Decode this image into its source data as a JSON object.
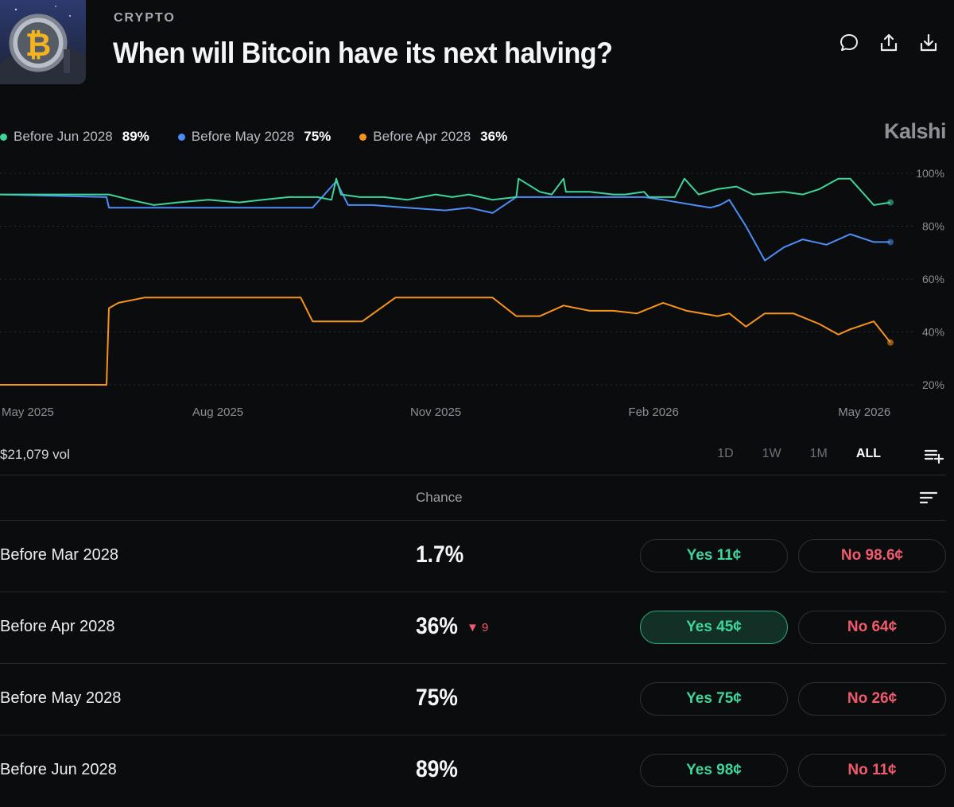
{
  "header": {
    "category": "CRYPTO",
    "title": "When will Bitcoin have its next halving?",
    "actions": [
      "comment-icon",
      "share-icon",
      "download-icon"
    ]
  },
  "legend": [
    {
      "label": "Before Jun 2028",
      "value": "89%",
      "color": "#3fd49a"
    },
    {
      "label": "Before May 2028",
      "value": "75%",
      "color": "#4b8ef7"
    },
    {
      "label": "Before Apr 2028",
      "value": "36%",
      "color": "#f7931a"
    }
  ],
  "brand": "Kalshi",
  "chart_data": {
    "type": "line",
    "x_ticks": [
      "May 2025",
      "Aug 2025",
      "Nov 2025",
      "Feb 2026",
      "May 2026"
    ],
    "y_ticks": [
      "100%",
      "80%",
      "60%",
      "40%",
      "20%"
    ],
    "ylim": [
      20,
      100
    ],
    "grid": true,
    "series": [
      {
        "name": "Before Jun 2028",
        "color": "#3fd49a",
        "x": [
          "2025-05-01",
          "2025-06-15",
          "2025-06-16",
          "2025-06-25",
          "2025-07-05",
          "2025-07-15",
          "2025-07-28",
          "2025-08-10",
          "2025-08-20",
          "2025-08-31",
          "2025-09-03",
          "2025-09-12",
          "2025-09-18",
          "2025-09-20",
          "2025-09-22",
          "2025-09-30",
          "2025-10-10",
          "2025-10-20",
          "2025-11-01",
          "2025-11-08",
          "2025-11-15",
          "2025-11-25",
          "2025-12-05",
          "2025-12-06",
          "2025-12-15",
          "2025-12-20",
          "2025-12-25",
          "2025-12-26",
          "2026-01-05",
          "2026-01-15",
          "2026-01-20",
          "2026-01-28",
          "2026-01-30",
          "2026-02-10",
          "2026-02-14",
          "2026-02-20",
          "2026-02-28",
          "2026-03-08",
          "2026-03-15",
          "2026-03-28",
          "2026-04-05",
          "2026-04-12",
          "2026-04-20",
          "2026-04-25",
          "2026-05-05",
          "2026-05-12"
        ],
        "values": [
          92,
          92,
          92,
          90,
          88,
          89,
          90,
          89,
          90,
          91,
          91,
          91,
          90,
          98,
          92,
          91,
          91,
          90,
          92,
          91,
          92,
          90,
          91,
          98,
          93,
          92,
          98,
          93,
          93,
          92,
          92,
          93,
          91,
          91,
          98,
          92,
          94,
          95,
          92,
          93,
          92,
          94,
          98,
          98,
          88,
          89
        ]
      },
      {
        "name": "Before May 2028",
        "color": "#4b8ef7",
        "x": [
          "2025-05-01",
          "2025-06-15",
          "2025-06-16",
          "2025-07-05",
          "2025-07-28",
          "2025-08-20",
          "2025-09-03",
          "2025-09-10",
          "2025-09-20",
          "2025-09-25",
          "2025-10-05",
          "2025-10-20",
          "2025-11-05",
          "2025-11-15",
          "2025-11-25",
          "2025-12-05",
          "2025-12-15",
          "2025-12-25",
          "2026-01-05",
          "2026-01-15",
          "2026-01-28",
          "2026-02-05",
          "2026-02-18",
          "2026-02-25",
          "2026-03-01",
          "2026-03-05",
          "2026-03-12",
          "2026-03-20",
          "2026-03-28",
          "2026-04-05",
          "2026-04-15",
          "2026-04-25",
          "2026-05-05",
          "2026-05-12"
        ],
        "values": [
          92,
          91,
          87,
          87,
          87,
          87,
          87,
          87,
          97,
          88,
          88,
          87,
          86,
          87,
          85,
          91,
          91,
          91,
          91,
          91,
          91,
          90,
          88,
          87,
          88,
          90,
          80,
          67,
          72,
          75,
          73,
          77,
          74,
          74
        ]
      },
      {
        "name": "Before Apr 2028",
        "color": "#f7931a",
        "x": [
          "2025-05-01",
          "2025-06-15",
          "2025-06-16",
          "2025-06-20",
          "2025-07-01",
          "2025-07-15",
          "2025-07-28",
          "2025-08-10",
          "2025-08-25",
          "2025-09-05",
          "2025-09-10",
          "2025-09-20",
          "2025-10-01",
          "2025-10-15",
          "2025-11-01",
          "2025-11-12",
          "2025-11-25",
          "2025-12-05",
          "2025-12-15",
          "2025-12-25",
          "2026-01-05",
          "2026-01-15",
          "2026-01-25",
          "2026-02-05",
          "2026-02-15",
          "2026-02-28",
          "2026-03-05",
          "2026-03-12",
          "2026-03-20",
          "2026-04-01",
          "2026-04-12",
          "2026-04-20",
          "2026-04-25",
          "2026-05-05",
          "2026-05-12"
        ],
        "values": [
          20,
          20,
          49,
          51,
          53,
          53,
          53,
          53,
          53,
          53,
          44,
          44,
          44,
          53,
          53,
          53,
          53,
          46,
          46,
          50,
          48,
          48,
          47,
          51,
          48,
          46,
          47,
          42,
          47,
          47,
          43,
          39,
          41,
          44,
          36
        ]
      }
    ]
  },
  "volume": "$21,079 vol",
  "ranges": [
    {
      "label": "1D",
      "active": false
    },
    {
      "label": "1W",
      "active": false
    },
    {
      "label": "1M",
      "active": false
    },
    {
      "label": "ALL",
      "active": true
    }
  ],
  "table": {
    "chance_header": "Chance",
    "rows": [
      {
        "label": "Before Mar 2028",
        "chance": "1.7%",
        "change": "",
        "yes": "Yes 11¢",
        "no": "No 98.6¢",
        "yes_highlight": false
      },
      {
        "label": "Before Apr 2028",
        "chance": "36%",
        "change": "▼ 9",
        "yes": "Yes 45¢",
        "no": "No 64¢",
        "yes_highlight": true
      },
      {
        "label": "Before May 2028",
        "chance": "75%",
        "change": "",
        "yes": "Yes 75¢",
        "no": "No 26¢",
        "yes_highlight": false
      },
      {
        "label": "Before Jun 2028",
        "chance": "89%",
        "change": "",
        "yes": "Yes 98¢",
        "no": "No 11¢",
        "yes_highlight": false
      }
    ]
  },
  "colors": {
    "background": "#0b0c0e",
    "yes": "#3fd49a",
    "no": "#ef5b6c"
  }
}
